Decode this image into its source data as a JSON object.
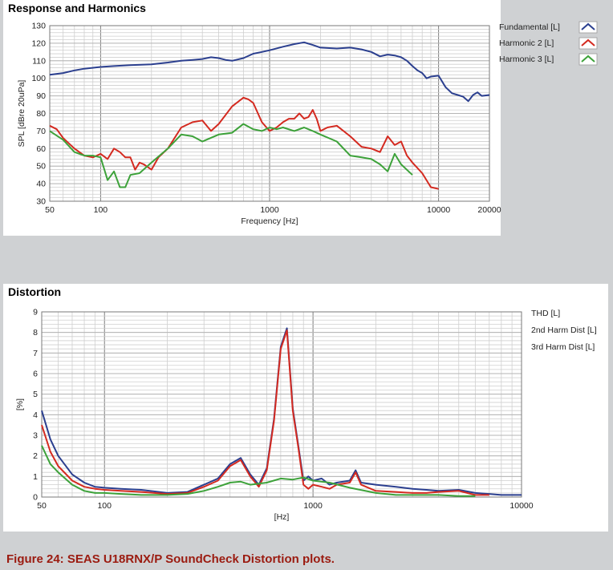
{
  "caption": "Figure 24: SEAS U18RNX/P SoundCheck Distortion plots.",
  "chart_data": [
    {
      "type": "line",
      "title": "Response and Harmonics",
      "xlabel": "Frequency [Hz]",
      "ylabel": "SPL [dBre 20uPa]",
      "x_scale": "log",
      "xlim": [
        50,
        20000
      ],
      "ylim": [
        30,
        130
      ],
      "x_ticks": [
        50,
        100,
        1000,
        10000,
        20000
      ],
      "x_tick_labels": [
        "50",
        "100",
        "1000",
        "10000",
        "20000"
      ],
      "y_ticks": [
        30,
        40,
        50,
        60,
        70,
        80,
        90,
        100,
        110,
        120,
        130
      ],
      "y_tick_labels": [
        "30",
        "40",
        "50",
        "60",
        "70",
        "80",
        "90",
        "100",
        "110",
        "120",
        "130"
      ],
      "grid": true,
      "legend": "right",
      "series": [
        {
          "name": "Fundamental [L]",
          "color": "#2b3f8f",
          "x": [
            50,
            60,
            70,
            80,
            100,
            120,
            150,
            200,
            250,
            300,
            350,
            400,
            450,
            500,
            550,
            600,
            700,
            800,
            900,
            1000,
            1200,
            1400,
            1600,
            1800,
            2000,
            2500,
            3000,
            3500,
            4000,
            4500,
            5000,
            5500,
            6000,
            6500,
            7000,
            7500,
            8000,
            8500,
            9000,
            10000,
            11000,
            12000,
            13000,
            14000,
            15000,
            16000,
            17000,
            18000,
            20000
          ],
          "y": [
            102,
            103,
            104.5,
            105.5,
            106.5,
            107,
            107.5,
            108,
            109,
            110,
            110.5,
            111,
            112,
            111.5,
            110.5,
            110,
            111.5,
            114,
            115,
            116,
            118,
            119.5,
            120.5,
            119,
            117.5,
            117,
            117.5,
            116.5,
            115,
            112.5,
            113.5,
            113,
            112,
            110,
            107,
            104.5,
            103,
            100,
            101,
            101.5,
            95,
            91.5,
            90.5,
            89.5,
            87,
            90.5,
            92,
            90,
            90.5
          ]
        },
        {
          "name": "Harmonic 2 [L]",
          "color": "#d42a20",
          "x": [
            50,
            55,
            60,
            70,
            80,
            90,
            100,
            110,
            120,
            130,
            140,
            150,
            160,
            170,
            180,
            200,
            220,
            250,
            300,
            350,
            400,
            450,
            500,
            600,
            700,
            750,
            800,
            900,
            1000,
            1100,
            1200,
            1300,
            1400,
            1500,
            1600,
            1700,
            1800,
            1900,
            2000,
            2200,
            2500,
            3000,
            3500,
            4000,
            4500,
            5000,
            5500,
            6000,
            6500,
            7000,
            8000,
            9000,
            10000
          ],
          "y": [
            73,
            71,
            66,
            60,
            56,
            55,
            57,
            54,
            60,
            58,
            55,
            55,
            48,
            52,
            51,
            48,
            55,
            60,
            72,
            75,
            76,
            70,
            74,
            84,
            89,
            88,
            86,
            75,
            70,
            72,
            75,
            77,
            77,
            80,
            77,
            78,
            82,
            77,
            70,
            72,
            73,
            67,
            61,
            60,
            58,
            67,
            62,
            64,
            56,
            52,
            46,
            38,
            37
          ]
        },
        {
          "name": "Harmonic 3 [L]",
          "color": "#3da23a",
          "x": [
            50,
            60,
            70,
            80,
            90,
            100,
            110,
            120,
            130,
            140,
            150,
            170,
            200,
            250,
            300,
            350,
            400,
            500,
            600,
            700,
            800,
            900,
            1000,
            1100,
            1200,
            1400,
            1600,
            1800,
            2000,
            2500,
            3000,
            3500,
            4000,
            4500,
            5000,
            5500,
            6000,
            7000
          ],
          "y": [
            70,
            65,
            58,
            56,
            56,
            55,
            42,
            47,
            38,
            38,
            45,
            46,
            52,
            60,
            68,
            67,
            64,
            68,
            69,
            74,
            71,
            70,
            72,
            71,
            72,
            70,
            72,
            70,
            68,
            64,
            56,
            55,
            54,
            51,
            47,
            57,
            51,
            45
          ]
        }
      ]
    },
    {
      "type": "line",
      "title": "Distortion",
      "xlabel": "[Hz]",
      "ylabel": "[%]",
      "x_scale": "log",
      "xlim": [
        50,
        10000
      ],
      "ylim": [
        0,
        9
      ],
      "x_ticks": [
        50,
        100,
        1000,
        10000
      ],
      "x_tick_labels": [
        "50",
        "100",
        "1000",
        "10000"
      ],
      "y_ticks": [
        0,
        1,
        2,
        3,
        4,
        5,
        6,
        7,
        8,
        9
      ],
      "y_tick_labels": [
        "0",
        "1",
        "2",
        "3",
        "4",
        "5",
        "6",
        "7",
        "8",
        "9"
      ],
      "grid": true,
      "legend": "right",
      "series": [
        {
          "name": "THD [L]",
          "color": "#2b3f8f",
          "x": [
            50,
            55,
            60,
            70,
            80,
            90,
            100,
            120,
            150,
            200,
            250,
            300,
            350,
            400,
            450,
            500,
            550,
            600,
            650,
            700,
            750,
            800,
            850,
            900,
            950,
            1000,
            1100,
            1200,
            1300,
            1500,
            1600,
            1700,
            2000,
            2500,
            3000,
            3500,
            4000,
            5000,
            6000,
            7000,
            8000,
            10000
          ],
          "y": [
            4.2,
            2.8,
            2,
            1.1,
            0.7,
            0.5,
            0.45,
            0.4,
            0.35,
            0.2,
            0.25,
            0.6,
            0.9,
            1.6,
            1.9,
            1.1,
            0.6,
            1.4,
            3.8,
            7.3,
            8.2,
            4.3,
            2.5,
            0.8,
            1.0,
            0.8,
            0.9,
            0.6,
            0.7,
            0.8,
            1.3,
            0.7,
            0.6,
            0.5,
            0.4,
            0.35,
            0.3,
            0.35,
            0.2,
            0.15,
            0.1,
            0.1
          ]
        },
        {
          "name": "2nd Harm Dist [L]",
          "color": "#d42a20",
          "x": [
            50,
            55,
            60,
            70,
            80,
            90,
            100,
            120,
            150,
            200,
            250,
            300,
            350,
            400,
            450,
            500,
            550,
            600,
            650,
            700,
            750,
            800,
            850,
            900,
            950,
            1000,
            1100,
            1200,
            1300,
            1500,
            1600,
            1700,
            2000,
            2500,
            3000,
            3500,
            4000,
            5000,
            6000,
            7000
          ],
          "y": [
            3.5,
            2.2,
            1.5,
            0.8,
            0.5,
            0.4,
            0.35,
            0.3,
            0.25,
            0.15,
            0.2,
            0.5,
            0.8,
            1.5,
            1.8,
            1.0,
            0.5,
            1.3,
            3.7,
            7.2,
            8.1,
            4.2,
            2.4,
            0.6,
            0.4,
            0.6,
            0.5,
            0.4,
            0.6,
            0.7,
            1.2,
            0.6,
            0.3,
            0.25,
            0.2,
            0.2,
            0.25,
            0.3,
            0.1,
            0.1
          ]
        },
        {
          "name": "3rd Harm Dist [L]",
          "color": "#3da23a",
          "x": [
            50,
            55,
            60,
            70,
            80,
            90,
            100,
            120,
            150,
            200,
            250,
            300,
            350,
            400,
            450,
            500,
            600,
            700,
            800,
            900,
            1000,
            1200,
            1500,
            2000,
            2500,
            3000,
            3500,
            4000,
            5000,
            6000
          ],
          "y": [
            2.5,
            1.6,
            1.2,
            0.6,
            0.3,
            0.2,
            0.2,
            0.15,
            0.1,
            0.1,
            0.15,
            0.3,
            0.5,
            0.7,
            0.75,
            0.6,
            0.7,
            0.9,
            0.85,
            0.95,
            0.8,
            0.7,
            0.45,
            0.2,
            0.1,
            0.1,
            0.1,
            0.1,
            0.05,
            0.05
          ]
        }
      ]
    }
  ]
}
